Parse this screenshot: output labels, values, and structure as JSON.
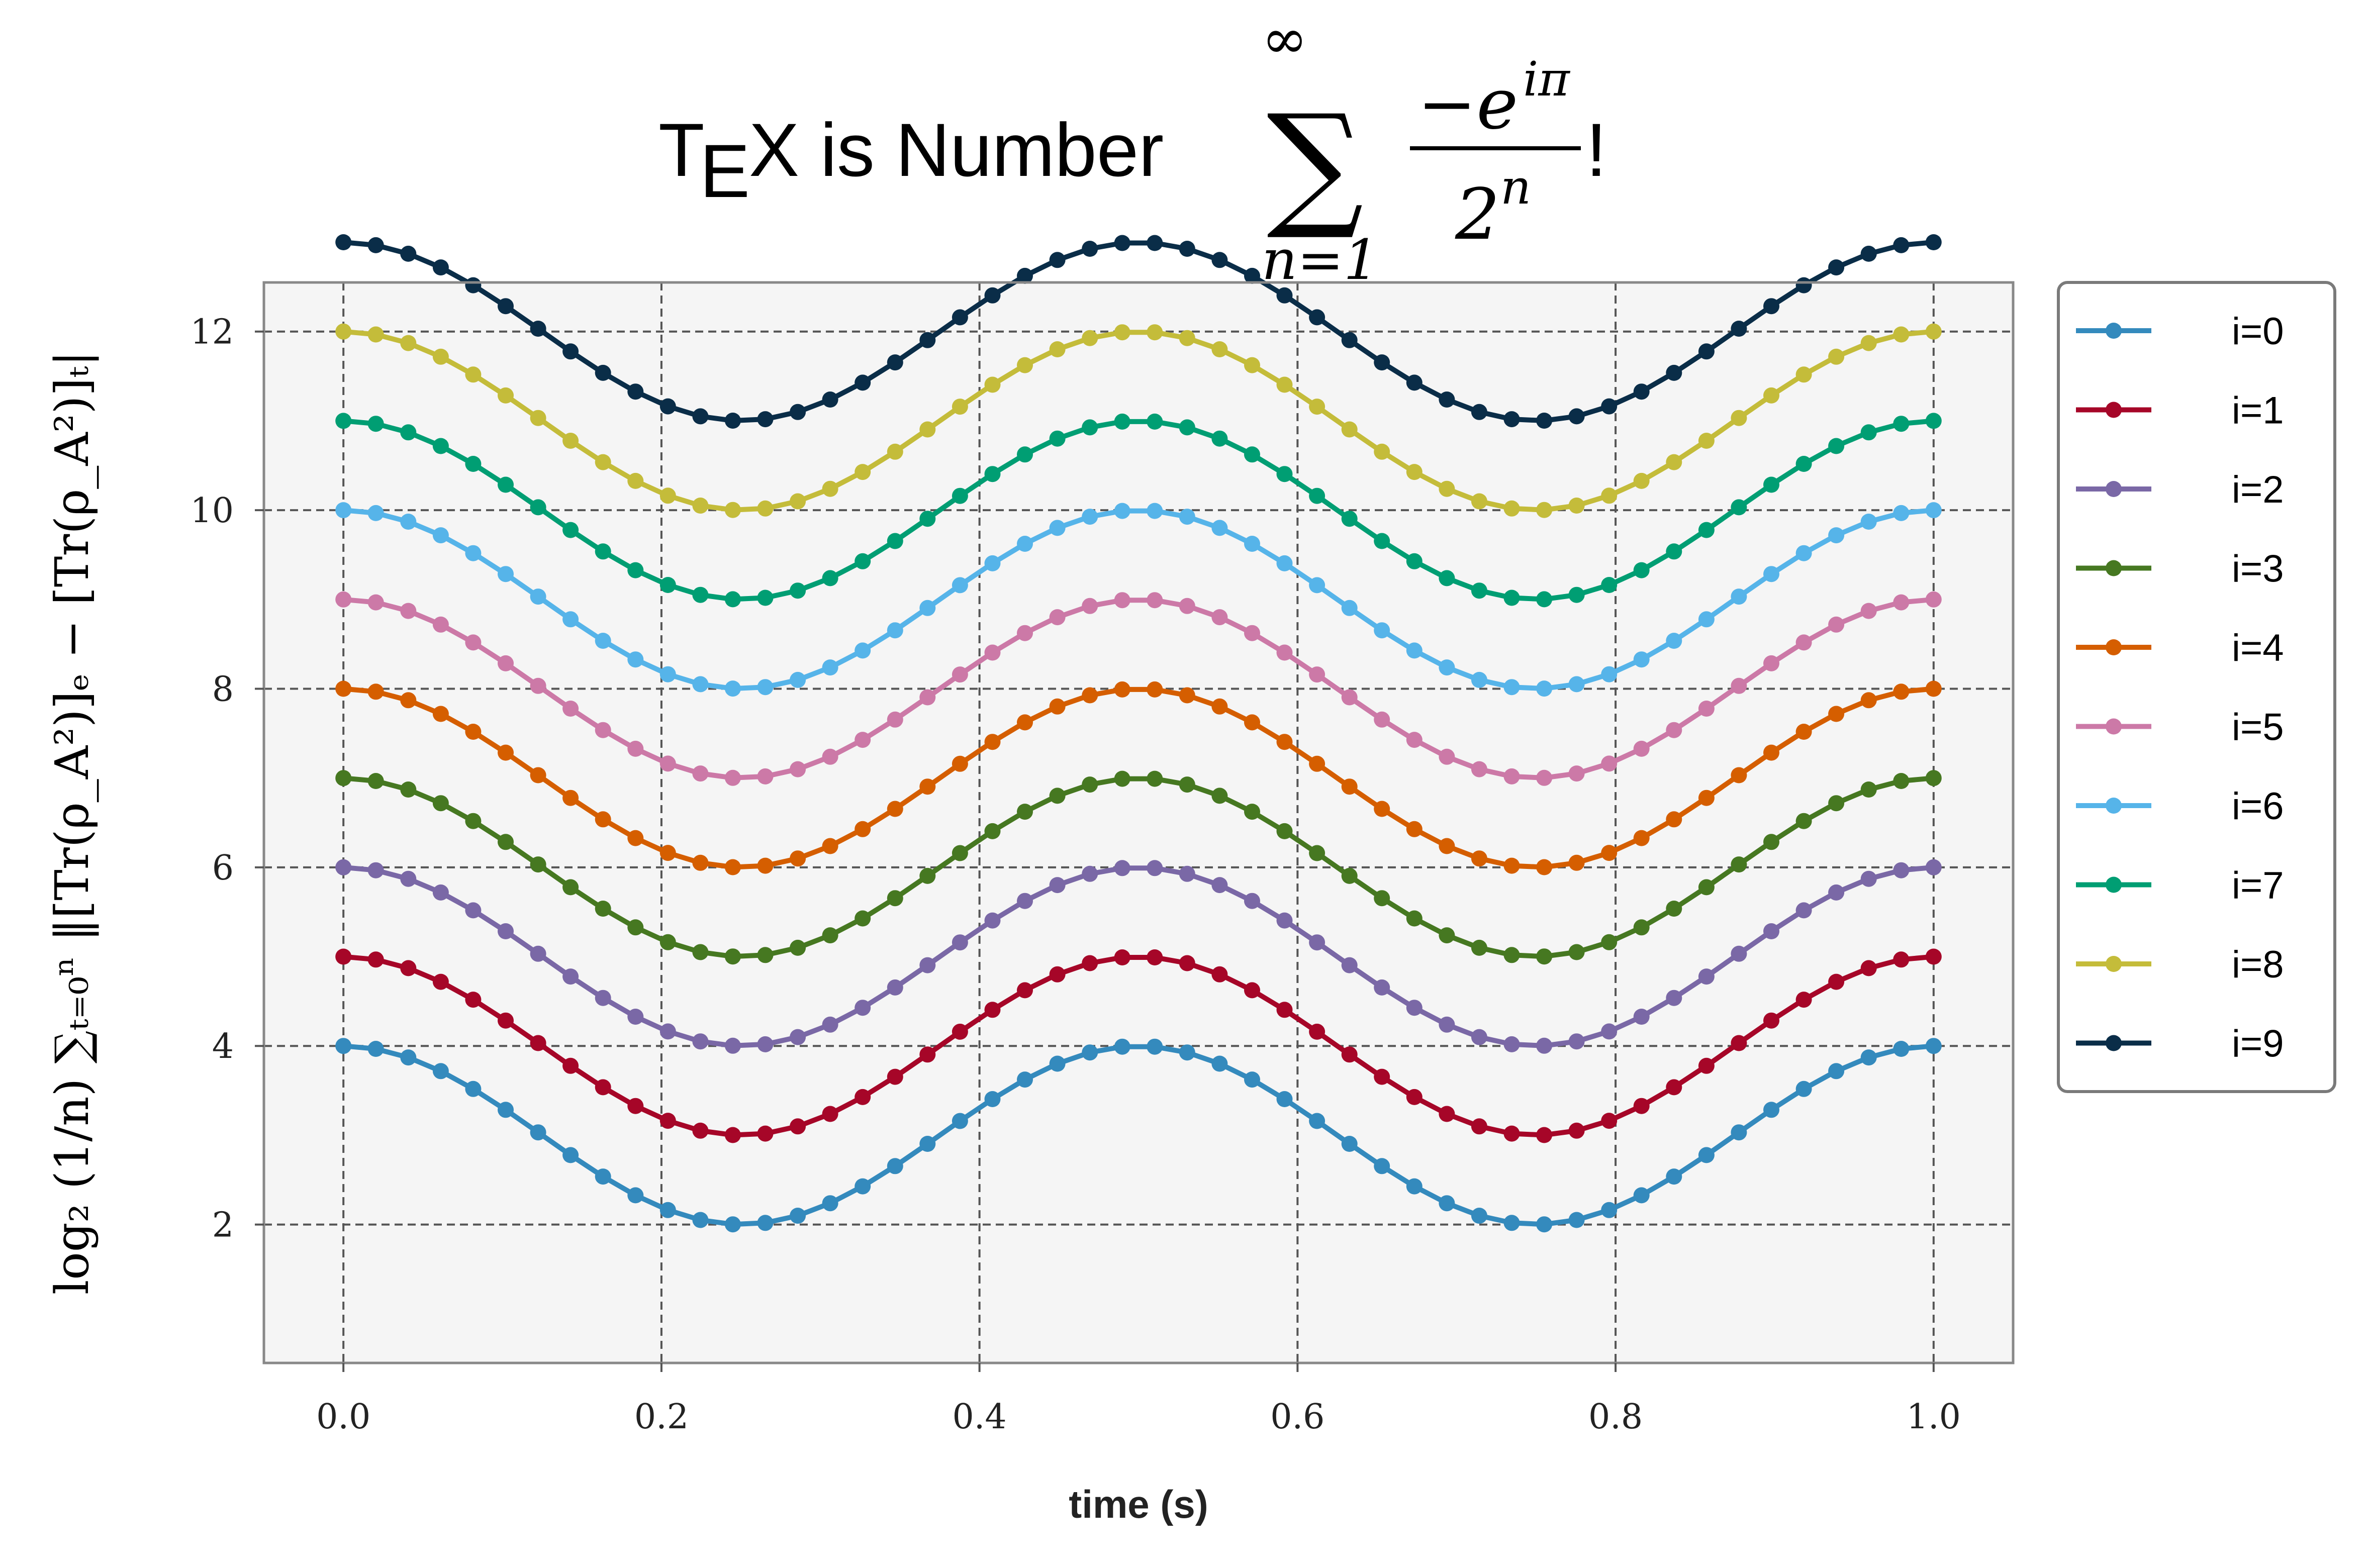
{
  "chart_data": {
    "type": "line",
    "title": "TEX is Number ∑_{n=1}^{∞} −e^{iπ}/2^n !",
    "title_parts": {
      "tex_t": "T",
      "tex_e": "E",
      "tex_x": "X",
      "rest": " is Number ",
      "sum_sign": "∑",
      "sum_upper": "∞",
      "sum_lower": "n=1",
      "numerator": "−e",
      "numerator_exp": "iπ",
      "denominator": "2",
      "denominator_exp": "n",
      "bang": "!"
    },
    "xlabel": "time (s)",
    "ylabel": "log₂ (1/n) ∑ₜ₌₀ⁿ ‖[Tr(ρ_A²)]ₑ − [Tr(ρ_A²)]ₜ|",
    "xlim": [
      -0.05,
      1.05
    ],
    "ylim": [
      0.45,
      12.55
    ],
    "xticks": [
      0.0,
      0.2,
      0.4,
      0.6,
      0.8,
      1.0
    ],
    "xtick_labels": [
      "0.0",
      "0.2",
      "0.4",
      "0.6",
      "0.8",
      "1.0"
    ],
    "yticks": [
      2,
      4,
      6,
      8,
      10,
      12
    ],
    "ytick_labels": [
      "2",
      "4",
      "6",
      "8",
      "10",
      "12"
    ],
    "grid": true,
    "legend_position": "outside-right-top",
    "x_count": 50,
    "x_start": 0.0,
    "x_end": 1.0,
    "curve": "offset + 1 + cos(4πx)",
    "series": [
      {
        "name": "i=0",
        "offset": 2,
        "color": "#348ABD"
      },
      {
        "name": "i=1",
        "offset": 3,
        "color": "#A60628"
      },
      {
        "name": "i=2",
        "offset": 4,
        "color": "#7A68A6"
      },
      {
        "name": "i=3",
        "offset": 5,
        "color": "#467821"
      },
      {
        "name": "i=4",
        "offset": 6,
        "color": "#D55E00"
      },
      {
        "name": "i=5",
        "offset": 7,
        "color": "#CC79A7"
      },
      {
        "name": "i=6",
        "offset": 8,
        "color": "#56B4E9"
      },
      {
        "name": "i=7",
        "offset": 9,
        "color": "#009E73"
      },
      {
        "name": "i=8",
        "offset": 10,
        "color": "#C4BC3A"
      },
      {
        "name": "i=9",
        "offset": 11,
        "color": "#0A2D48"
      }
    ]
  },
  "colors": {
    "axes_background": "#F5F5F5",
    "grid": "#555555",
    "spine": "#888888"
  }
}
